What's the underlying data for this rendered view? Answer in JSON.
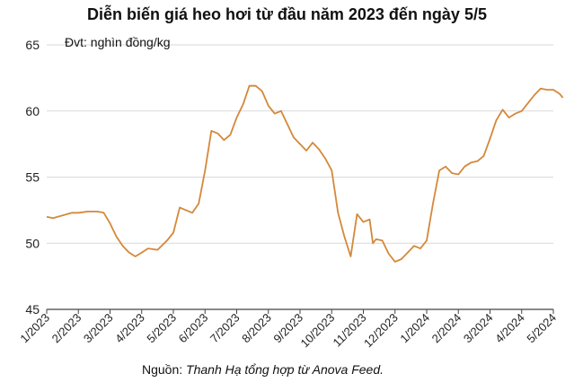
{
  "chart_data": {
    "type": "line",
    "title": "Diễn biến giá heo hơi từ đầu năm 2023 đến ngày 5/5",
    "unit_label": "Đvt: nghìn đồng/kg",
    "xlabel": "",
    "ylabel": "",
    "ylim": [
      45,
      65
    ],
    "yticks": [
      45,
      50,
      55,
      60,
      65
    ],
    "grid": "horizontal",
    "line_color": "#d4883a",
    "categories": [
      "1/2023",
      "2/2023",
      "3/2023",
      "4/2023",
      "5/2023",
      "6/2023",
      "7/2023",
      "8/2023",
      "9/2023",
      "10/2023",
      "11/2023",
      "12/2023",
      "1/2024",
      "2/2024",
      "3/2024",
      "4/2024",
      "5/2024"
    ],
    "series": [
      {
        "x": [
          0,
          0.2,
          0.5,
          0.8,
          1.0,
          1.3,
          1.6,
          1.8,
          2.0,
          2.2,
          2.4,
          2.6,
          2.8,
          3.0,
          3.2,
          3.5,
          3.8,
          4.0,
          4.2,
          4.4,
          4.6,
          4.8,
          5.0,
          5.2,
          5.4,
          5.6,
          5.8,
          6.0,
          6.2,
          6.4,
          6.6,
          6.8,
          7.0,
          7.2,
          7.4,
          7.6,
          7.8,
          8.0,
          8.2,
          8.4,
          8.6,
          8.8,
          9.0,
          9.2,
          9.4,
          9.6,
          9.8,
          10.0,
          10.2,
          10.3,
          10.4,
          10.6,
          10.8,
          11.0,
          11.2,
          11.4,
          11.6,
          11.8,
          12.0,
          12.2,
          12.4,
          12.6,
          12.8,
          13.0,
          13.2,
          13.4,
          13.6,
          13.8,
          14.0,
          14.2,
          14.4,
          14.6,
          14.8,
          15.0,
          15.2,
          15.4,
          15.6,
          15.8,
          16.0,
          16.2,
          16.3
        ],
        "values": [
          52,
          51.9,
          52.1,
          52.3,
          52.3,
          52.4,
          52.4,
          52.3,
          51.5,
          50.5,
          49.8,
          49.3,
          49.0,
          49.3,
          49.6,
          49.5,
          50.2,
          50.8,
          52.7,
          52.5,
          52.3,
          53.0,
          55.5,
          58.5,
          58.3,
          57.8,
          58.2,
          59.5,
          60.5,
          61.9,
          61.9,
          61.5,
          60.4,
          59.8,
          60.0,
          59.0,
          58.0,
          57.5,
          57.0,
          57.6,
          57.1,
          56.4,
          55.5,
          52.3,
          50.5,
          49.0,
          52.2,
          51.6,
          51.8,
          50.0,
          50.3,
          50.2,
          49.2,
          48.6,
          48.8,
          49.3,
          49.8,
          49.6,
          50.2,
          53.0,
          55.5,
          55.8,
          55.3,
          55.2,
          55.8,
          56.1,
          56.2,
          56.6,
          57.9,
          59.3,
          60.1,
          59.5,
          59.8,
          60.0,
          60.6,
          61.2,
          61.7,
          61.6,
          61.6,
          61.3,
          61.0
        ]
      }
    ]
  },
  "source": {
    "prefix": "Nguồn: ",
    "text": "Thanh Hạ tổng hợp từ Anova Feed."
  }
}
